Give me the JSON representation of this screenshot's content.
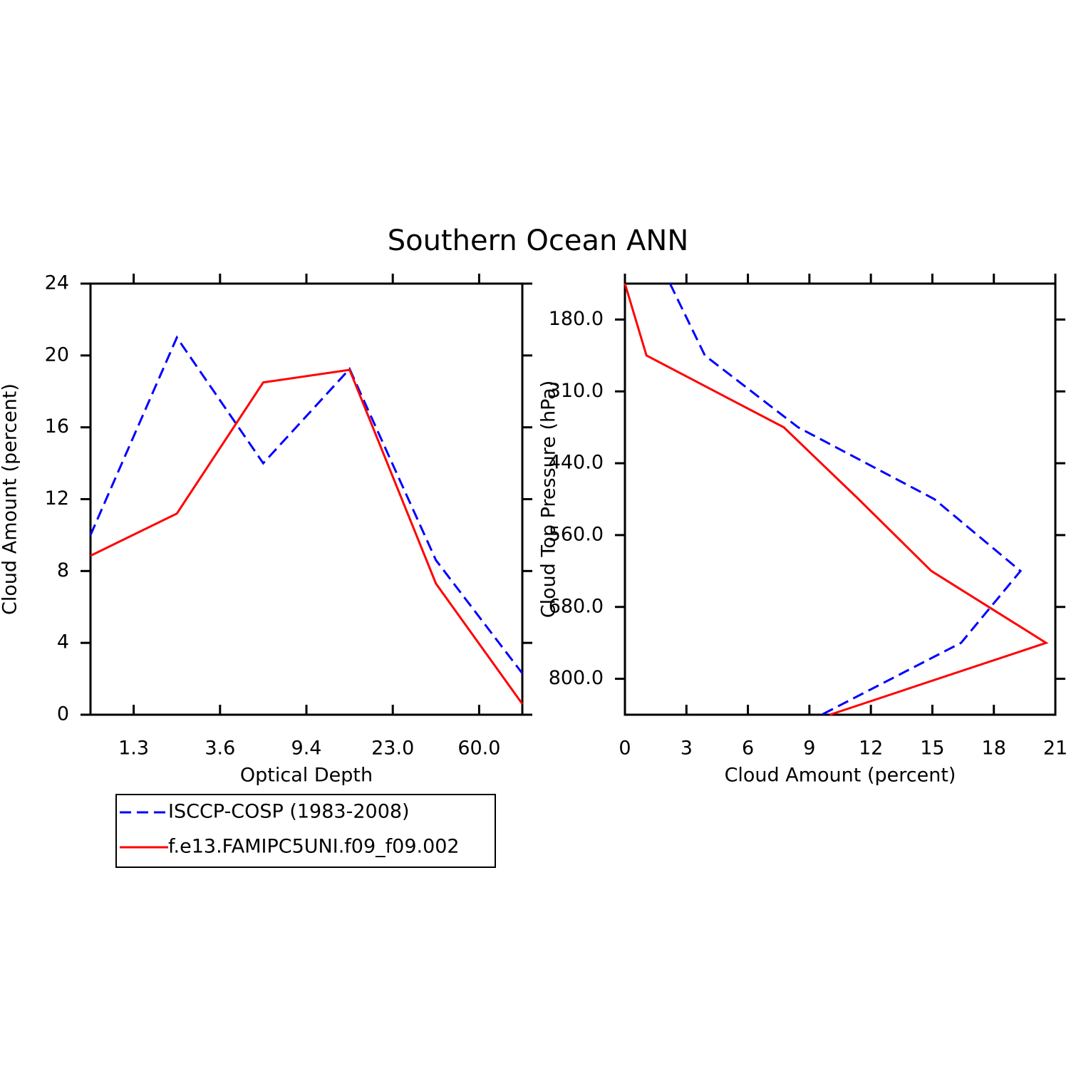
{
  "title": "Southern Ocean ANN",
  "chart_data": [
    {
      "type": "line",
      "orientation": "vertical",
      "xlabel": "Optical Depth",
      "ylabel": "Cloud Amount (percent)",
      "x": [
        0,
        1,
        2,
        3,
        4,
        5
      ],
      "xlim": [
        0,
        5
      ],
      "xticks": [
        {
          "value": 0.5,
          "label": "1.3"
        },
        {
          "value": 1.5,
          "label": "3.6"
        },
        {
          "value": 2.5,
          "label": "9.4"
        },
        {
          "value": 3.5,
          "label": "23.0"
        },
        {
          "value": 4.5,
          "label": "60.0"
        }
      ],
      "ylim": [
        0,
        24
      ],
      "yticks": [
        0,
        4,
        8,
        12,
        16,
        20,
        24
      ],
      "legend": "below",
      "series": [
        {
          "name": "ISCCP-COSP (1983-2008)",
          "color": "#0000ff",
          "dash": true,
          "values": [
            10.0,
            21.0,
            14.0,
            19.25,
            8.6,
            2.3
          ]
        },
        {
          "name": "f.e13.FAMIPC5UNI.f09_f09.002",
          "color": "#ff0000",
          "dash": false,
          "values": [
            8.85,
            11.2,
            18.5,
            19.2,
            7.3,
            0.6
          ]
        }
      ]
    },
    {
      "type": "line",
      "orientation": "horizontal",
      "xlabel": "Cloud Amount (percent)",
      "ylabel": "Cloud Top Pressure (hPa)",
      "y": [
        0,
        1,
        2,
        3,
        4,
        5,
        6
      ],
      "ylim": [
        6,
        0
      ],
      "yticks": [
        {
          "value": 0.5,
          "label": "180.0"
        },
        {
          "value": 1.5,
          "label": "310.0"
        },
        {
          "value": 2.5,
          "label": "440.0"
        },
        {
          "value": 3.5,
          "label": "560.0"
        },
        {
          "value": 4.5,
          "label": "680.0"
        },
        {
          "value": 5.5,
          "label": "800.0"
        }
      ],
      "xlim": [
        0,
        21
      ],
      "xticks": [
        0,
        3,
        6,
        9,
        12,
        15,
        18,
        21
      ],
      "series": [
        {
          "name": "ISCCP-COSP (1983-2008)",
          "color": "#0000ff",
          "dash": true,
          "values": [
            2.2,
            3.9,
            8.45,
            15.1,
            19.3,
            16.4,
            9.6
          ]
        },
        {
          "name": "f.e13.FAMIPC5UNI.f09_f09.002",
          "color": "#ff0000",
          "dash": false,
          "values": [
            0,
            1.05,
            7.75,
            11.4,
            14.95,
            20.55,
            10.0
          ]
        }
      ]
    }
  ]
}
